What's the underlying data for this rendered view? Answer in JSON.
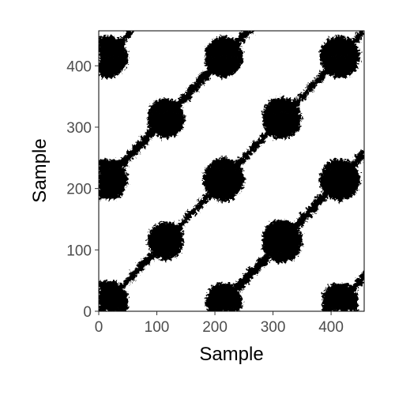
{
  "chart_data": {
    "type": "heatmap",
    "title": "",
    "xlabel": "Sample",
    "ylabel": "Sample",
    "xlim": [
      0,
      457
    ],
    "ylim": [
      0,
      457
    ],
    "x_ticks": [
      0,
      100,
      200,
      300,
      400
    ],
    "y_ticks": [
      0,
      100,
      200,
      300,
      400
    ],
    "x_tick_labels": [
      "0",
      "100",
      "200",
      "300",
      "400"
    ],
    "y_tick_labels": [
      "0",
      "100",
      "200",
      "300",
      "400"
    ],
    "grid": false,
    "legend": "none",
    "colors": {
      "recurrent": "#000000",
      "non_recurrent": "#ffffff",
      "panel_border": "#000000",
      "tick_text": "#4d4d4d"
    },
    "description": "Binary recurrence plot: black where samples i and j are recurrent. Main diagonal is black; large black blobs occur at the periodic state centers and thinner diagonal bands connect them.",
    "recurrent_centers": [
      15,
      115,
      215,
      315,
      415
    ],
    "period": 200
  }
}
